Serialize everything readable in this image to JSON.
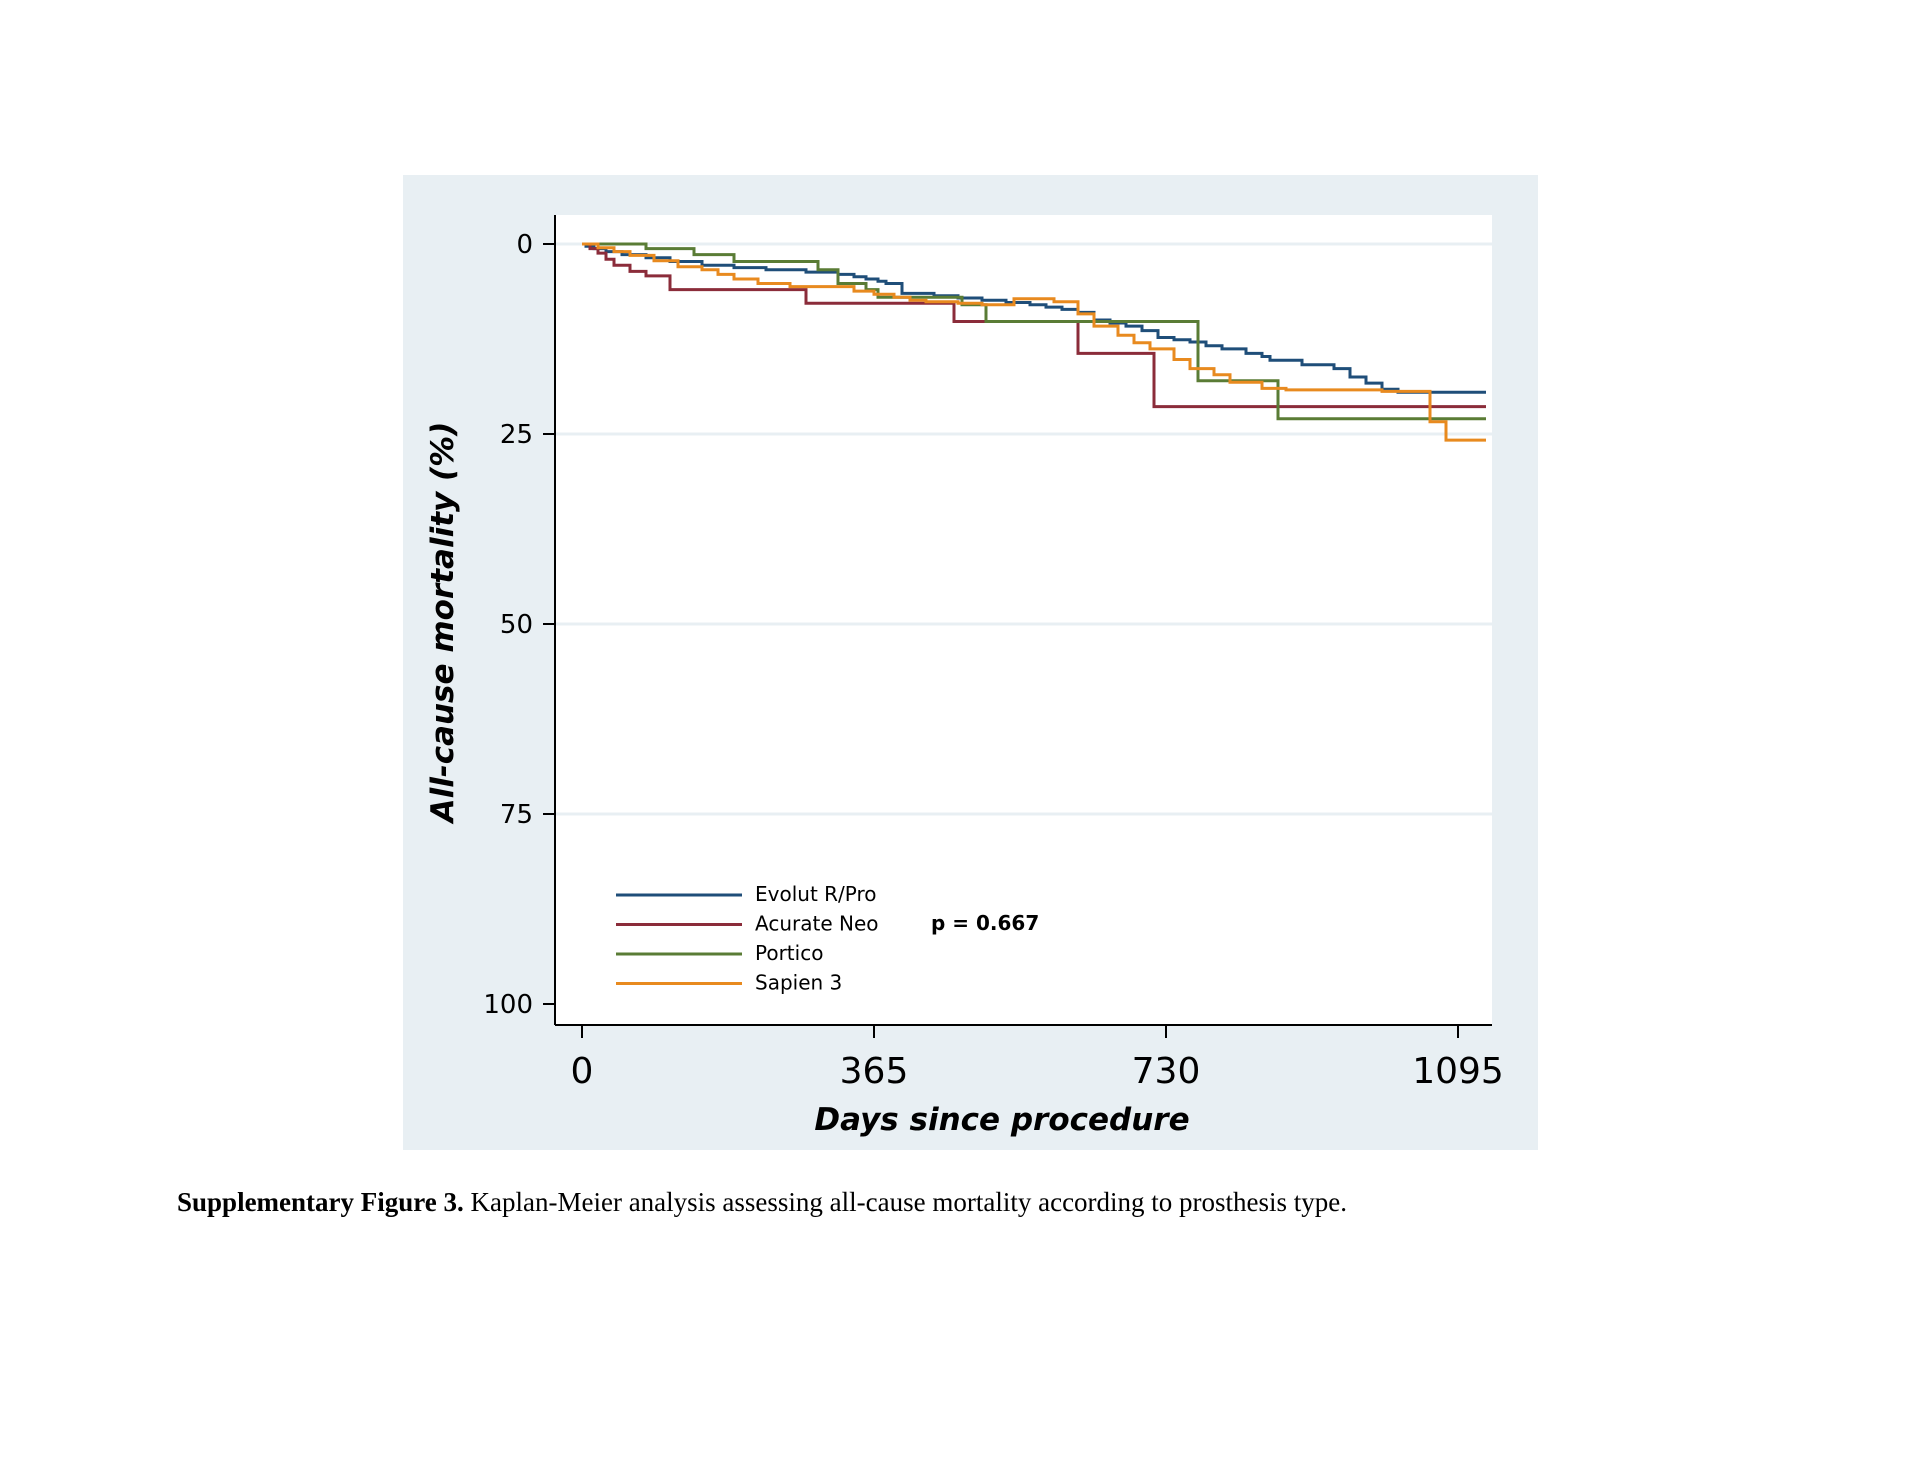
{
  "caption": {
    "label": "Supplementary Figure 3.",
    "text": " Kaplan-Meier analysis assessing all-cause mortality according to prosthesis type."
  },
  "chart_data": {
    "type": "line",
    "step": true,
    "xlabel": "Days since procedure",
    "ylabel": "All-cause mortality (%)",
    "xlim": [
      0,
      1095
    ],
    "ylim": [
      0,
      100
    ],
    "y_inverted": true,
    "xticks": [
      0,
      365,
      730,
      1095
    ],
    "yticks": [
      0,
      25,
      50,
      75,
      100
    ],
    "grid": true,
    "legend_position": "bottom-left",
    "annotation": "p = 0.667",
    "colors": {
      "background": "#e8eff3",
      "plot": "#ffffff",
      "grid": "#e8eff3"
    },
    "series": [
      {
        "name": "Evolut R/Pro",
        "color": "#1f4e79",
        "x": [
          0,
          5,
          15,
          30,
          50,
          80,
          110,
          150,
          190,
          230,
          280,
          320,
          340,
          355,
          370,
          380,
          400,
          440,
          470,
          500,
          530,
          560,
          580,
          600,
          620,
          640,
          660,
          680,
          700,
          720,
          740,
          760,
          780,
          800,
          830,
          850,
          860,
          900,
          940,
          960,
          980,
          1000,
          1020,
          1040,
          1060,
          1080,
          1130
        ],
        "y": [
          0,
          0.3,
          0.6,
          1.0,
          1.4,
          1.8,
          2.3,
          2.8,
          3.1,
          3.4,
          3.7,
          4.0,
          4.3,
          4.6,
          4.9,
          5.2,
          6.5,
          6.8,
          7.1,
          7.4,
          7.7,
          8.0,
          8.3,
          8.6,
          9.0,
          10.0,
          10.4,
          10.8,
          11.4,
          12.3,
          12.6,
          12.9,
          13.4,
          13.8,
          14.4,
          14.8,
          15.3,
          15.9,
          16.4,
          17.5,
          18.3,
          19.1,
          19.5,
          19.5,
          19.5,
          19.5,
          19.5
        ]
      },
      {
        "name": "Acurate Neo",
        "color": "#8b2c3a",
        "x": [
          0,
          10,
          20,
          30,
          40,
          60,
          80,
          110,
          280,
          465,
          620,
          715,
          1050,
          1130
        ],
        "y": [
          0,
          0.6,
          1.2,
          2.0,
          2.8,
          3.6,
          4.2,
          6.0,
          7.8,
          10.2,
          14.4,
          21.4,
          21.4,
          21.4
        ]
      },
      {
        "name": "Portico",
        "color": "#5a7c35",
        "x": [
          0,
          80,
          140,
          190,
          295,
          320,
          355,
          370,
          475,
          505,
          740,
          770,
          830,
          870,
          1130
        ],
        "y": [
          0,
          0.6,
          1.4,
          2.3,
          3.4,
          5.2,
          6.0,
          7.0,
          8.0,
          10.2,
          10.2,
          18.0,
          18.0,
          23.0,
          23.0
        ]
      },
      {
        "name": "Sapien 3",
        "color": "#e88a1f",
        "x": [
          0,
          20,
          40,
          60,
          90,
          120,
          150,
          170,
          190,
          220,
          260,
          340,
          365,
          390,
          410,
          430,
          470,
          500,
          540,
          590,
          620,
          640,
          670,
          690,
          710,
          740,
          760,
          790,
          810,
          850,
          880,
          1000,
          1060,
          1080,
          1130
        ],
        "y": [
          0,
          0.5,
          1.0,
          1.5,
          2.2,
          3.0,
          3.4,
          4.0,
          4.6,
          5.2,
          5.6,
          6.2,
          6.6,
          7.0,
          7.4,
          7.6,
          7.8,
          8.0,
          7.2,
          7.6,
          9.2,
          10.8,
          12.0,
          13.0,
          13.8,
          15.2,
          16.4,
          17.2,
          18.2,
          19.0,
          19.2,
          19.4,
          23.4,
          25.8,
          25.8
        ]
      }
    ]
  }
}
